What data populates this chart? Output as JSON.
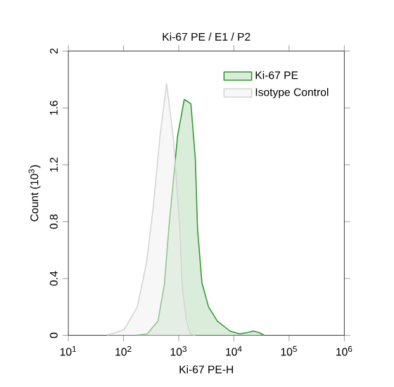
{
  "chart_data": {
    "type": "area",
    "title": "Ki-67 PE / E1 / P2",
    "xlabel": "Ki-67 PE-H",
    "ylabel": "Count (10$^{3}$)",
    "log": "x",
    "legend": "top right",
    "grid": false,
    "xlim": [
      10,
      1000000
    ],
    "ylim": [
      0,
      2
    ],
    "xticks": [
      {
        "value": 10,
        "label": "10$^{1}$"
      },
      {
        "value": 100,
        "label": "10$^{2}$"
      },
      {
        "value": 1000,
        "label": "10$^{3}$"
      },
      {
        "value": 10000,
        "label": "10$^{4}$"
      },
      {
        "value": 100000,
        "label": "10$^{5}$"
      },
      {
        "value": 1000000,
        "label": "10$^{6}$"
      }
    ],
    "yticks": [
      0,
      0.4,
      0.8,
      1.2,
      1.6,
      2
    ],
    "series": [
      {
        "name": "Ki-67 PE",
        "color": "#2e9a2e",
        "x": [
          170,
          270,
          420,
          550,
          660,
          790,
          950,
          1260,
          1660,
          2000,
          2190,
          2630,
          3470,
          5010,
          8510,
          12600,
          17800,
          22400,
          28200,
          35500
        ],
        "values": [
          0,
          0.01,
          0.1,
          0.36,
          0.75,
          1.07,
          1.4,
          1.66,
          1.63,
          1.24,
          0.75,
          0.37,
          0.2,
          0.1,
          0.03,
          0.01,
          0.02,
          0.03,
          0.02,
          0
        ]
      },
      {
        "name": "Isotype Control",
        "color": "#d4d4d4",
        "x": [
          50,
          102,
          178,
          263,
          347,
          457,
          603,
          794,
          1047,
          1148,
          1380,
          1622,
          2000
        ],
        "values": [
          0,
          0.04,
          0.2,
          0.52,
          0.91,
          1.4,
          1.77,
          1.4,
          0.75,
          0.36,
          0.1,
          0.01,
          0
        ]
      }
    ]
  }
}
